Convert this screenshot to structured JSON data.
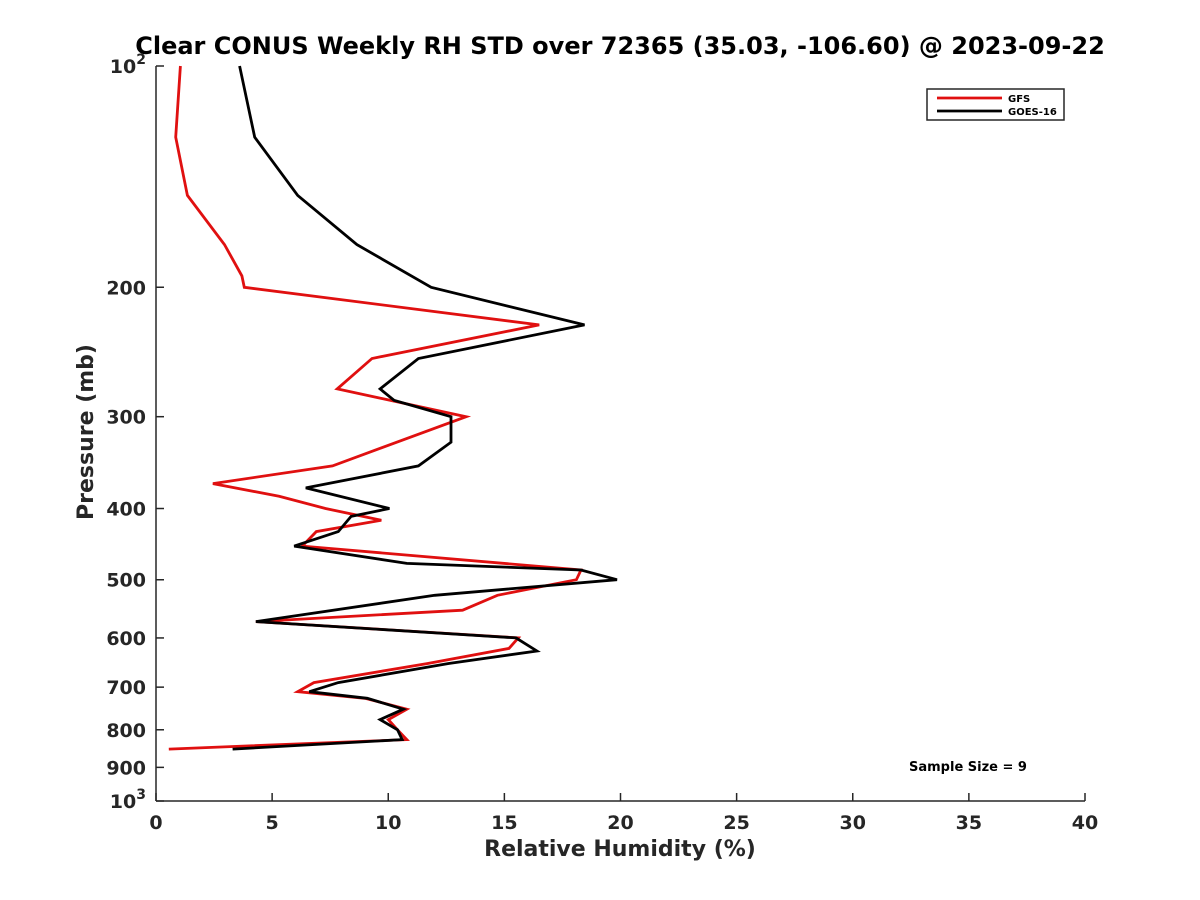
{
  "chart_data": {
    "type": "line",
    "title": "Clear CONUS Weekly RH STD over 72365 (35.03, -106.60) @ 2023-09-22",
    "xlabel": "Relative Humidity (%)",
    "ylabel": "Pressure (mb)",
    "xlim": [
      0,
      40
    ],
    "ylim": [
      100,
      1000
    ],
    "y_scale": "log",
    "y_reversed": true,
    "grid": false,
    "legend_position": "top-right",
    "x_ticks": [
      {
        "value": 0,
        "label": "0"
      },
      {
        "value": 5,
        "label": "5"
      },
      {
        "value": 10,
        "label": "10"
      },
      {
        "value": 15,
        "label": "15"
      },
      {
        "value": 20,
        "label": "20"
      },
      {
        "value": 25,
        "label": "25"
      },
      {
        "value": 30,
        "label": "30"
      },
      {
        "value": 35,
        "label": "35"
      },
      {
        "value": 40,
        "label": "40"
      }
    ],
    "y_ticks": [
      {
        "value": 100,
        "base": "10",
        "exp": "2"
      },
      {
        "value": 200,
        "label": "200"
      },
      {
        "value": 300,
        "label": "300"
      },
      {
        "value": 400,
        "label": "400"
      },
      {
        "value": 500,
        "label": "500"
      },
      {
        "value": 600,
        "label": "600"
      },
      {
        "value": 700,
        "label": "700"
      },
      {
        "value": 800,
        "label": "800"
      },
      {
        "value": 900,
        "label": "900"
      },
      {
        "value": 1000,
        "base": "10",
        "exp": "3"
      }
    ],
    "series": [
      {
        "name": "GFS",
        "color": "#e01010",
        "points": [
          {
            "x": 1.05,
            "p": 100
          },
          {
            "x": 0.85,
            "p": 125
          },
          {
            "x": 1.35,
            "p": 150
          },
          {
            "x": 2.95,
            "p": 175
          },
          {
            "x": 3.7,
            "p": 193
          },
          {
            "x": 3.8,
            "p": 200
          },
          {
            "x": 16.5,
            "p": 225
          },
          {
            "x": 9.3,
            "p": 250
          },
          {
            "x": 7.8,
            "p": 275
          },
          {
            "x": 13.35,
            "p": 300
          },
          {
            "x": 7.6,
            "p": 350
          },
          {
            "x": 2.45,
            "p": 370
          },
          {
            "x": 5.3,
            "p": 385
          },
          {
            "x": 7.3,
            "p": 400
          },
          {
            "x": 9.7,
            "p": 415
          },
          {
            "x": 6.9,
            "p": 430
          },
          {
            "x": 6.3,
            "p": 450
          },
          {
            "x": 18.3,
            "p": 485
          },
          {
            "x": 18.1,
            "p": 500
          },
          {
            "x": 14.7,
            "p": 525
          },
          {
            "x": 13.2,
            "p": 550
          },
          {
            "x": 4.3,
            "p": 570
          },
          {
            "x": 15.6,
            "p": 600
          },
          {
            "x": 15.2,
            "p": 620
          },
          {
            "x": 11.7,
            "p": 650
          },
          {
            "x": 6.8,
            "p": 690
          },
          {
            "x": 6.1,
            "p": 710
          },
          {
            "x": 9.0,
            "p": 725
          },
          {
            "x": 10.8,
            "p": 750
          },
          {
            "x": 10.0,
            "p": 775
          },
          {
            "x": 10.4,
            "p": 800
          },
          {
            "x": 10.8,
            "p": 825
          },
          {
            "x": 0.55,
            "p": 850
          }
        ]
      },
      {
        "name": "GOES-16",
        "color": "#000000",
        "points": [
          {
            "x": 3.6,
            "p": 100
          },
          {
            "x": 4.25,
            "p": 125
          },
          {
            "x": 6.1,
            "p": 150
          },
          {
            "x": 8.65,
            "p": 175
          },
          {
            "x": 11.85,
            "p": 200
          },
          {
            "x": 18.45,
            "p": 225
          },
          {
            "x": 11.3,
            "p": 250
          },
          {
            "x": 9.65,
            "p": 275
          },
          {
            "x": 10.25,
            "p": 285
          },
          {
            "x": 12.7,
            "p": 300
          },
          {
            "x": 12.7,
            "p": 325
          },
          {
            "x": 11.3,
            "p": 350
          },
          {
            "x": 6.45,
            "p": 375
          },
          {
            "x": 10.05,
            "p": 400
          },
          {
            "x": 8.4,
            "p": 410
          },
          {
            "x": 7.85,
            "p": 430
          },
          {
            "x": 5.95,
            "p": 450
          },
          {
            "x": 10.8,
            "p": 475
          },
          {
            "x": 18.3,
            "p": 485
          },
          {
            "x": 19.85,
            "p": 500
          },
          {
            "x": 12.0,
            "p": 525
          },
          {
            "x": 4.3,
            "p": 570
          },
          {
            "x": 15.5,
            "p": 600
          },
          {
            "x": 16.4,
            "p": 625
          },
          {
            "x": 12.6,
            "p": 650
          },
          {
            "x": 7.85,
            "p": 690
          },
          {
            "x": 6.6,
            "p": 710
          },
          {
            "x": 9.1,
            "p": 725
          },
          {
            "x": 10.65,
            "p": 750
          },
          {
            "x": 9.65,
            "p": 775
          },
          {
            "x": 10.4,
            "p": 800
          },
          {
            "x": 10.6,
            "p": 825
          },
          {
            "x": 3.3,
            "p": 850
          }
        ]
      }
    ],
    "annotations": [
      {
        "text": "Sample Size = 9",
        "position": "bottom-right"
      }
    ]
  }
}
